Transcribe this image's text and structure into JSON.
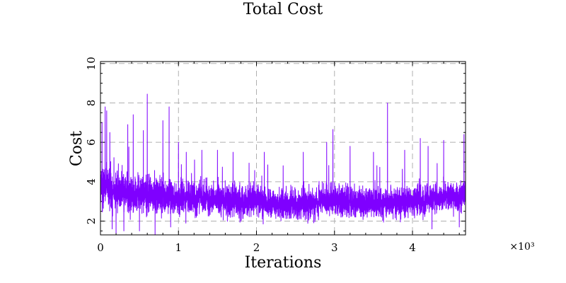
{
  "chart_data": {
    "type": "line",
    "title": "Total Cost",
    "xlabel": "Iterations",
    "ylabel": "Cost",
    "x_multiplier": "×10³",
    "xlim": [
      0,
      4.68
    ],
    "ylim": [
      1.3,
      10.1
    ],
    "x_ticks": [
      0,
      1,
      2,
      3,
      4
    ],
    "y_ticks": [
      2,
      4,
      6,
      8,
      10
    ],
    "grid": true,
    "series": [
      {
        "name": "Total Cost",
        "color": "#7f00ff",
        "n_points": 4680,
        "x_step": 0.001,
        "baseline": [
          [
            0,
            3.7
          ],
          [
            0.5,
            3.4
          ],
          [
            1.0,
            3.2
          ],
          [
            2.0,
            3.0
          ],
          [
            2.4,
            2.8
          ],
          [
            3.0,
            3.1
          ],
          [
            3.3,
            2.9
          ],
          [
            4.0,
            3.0
          ],
          [
            4.68,
            3.3
          ]
        ],
        "spread": [
          [
            0,
            0.75
          ],
          [
            0.6,
            0.65
          ],
          [
            1.0,
            0.55
          ],
          [
            4.68,
            0.5
          ]
        ],
        "spikes": [
          [
            0.02,
            7.0
          ],
          [
            0.06,
            7.8
          ],
          [
            0.08,
            7.6
          ],
          [
            0.12,
            6.5
          ],
          [
            0.2,
            6.6
          ],
          [
            0.3,
            7.6
          ],
          [
            0.35,
            6.9
          ],
          [
            0.42,
            7.4
          ],
          [
            0.5,
            6.6
          ],
          [
            0.55,
            6.6
          ],
          [
            0.6,
            8.45
          ],
          [
            0.7,
            7.0
          ],
          [
            0.8,
            7.1
          ],
          [
            0.88,
            7.8
          ],
          [
            1.0,
            6.0
          ],
          [
            1.1,
            5.5
          ],
          [
            1.3,
            5.6
          ],
          [
            1.5,
            5.6
          ],
          [
            1.7,
            5.5
          ],
          [
            2.1,
            5.5
          ],
          [
            2.6,
            5.5
          ],
          [
            2.9,
            6.0
          ],
          [
            2.98,
            6.65
          ],
          [
            3.2,
            5.8
          ],
          [
            3.5,
            5.5
          ],
          [
            3.68,
            8.0
          ],
          [
            3.9,
            5.6
          ],
          [
            4.1,
            6.2
          ],
          [
            4.2,
            5.8
          ],
          [
            4.4,
            6.1
          ],
          [
            4.6,
            5.8
          ],
          [
            4.66,
            6.4
          ]
        ],
        "dips": [
          [
            0.15,
            1.6
          ],
          [
            0.2,
            1.4
          ],
          [
            0.3,
            1.5
          ],
          [
            0.5,
            1.5
          ],
          [
            0.7,
            1.3
          ],
          [
            0.9,
            1.7
          ],
          [
            4.25,
            1.6
          ],
          [
            4.6,
            1.7
          ]
        ]
      }
    ]
  }
}
